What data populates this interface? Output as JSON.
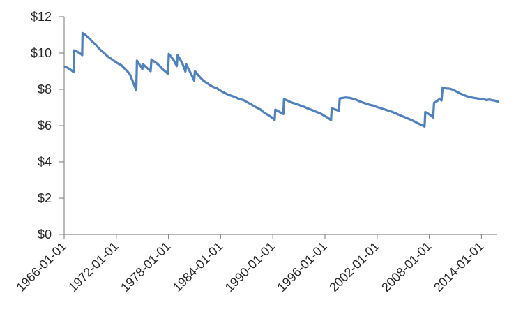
{
  "colors": {
    "line": "#4F81BD",
    "axis": "#8C8C8C",
    "tick_text": "#262626",
    "background": "#FFFFFF"
  },
  "chart_data": {
    "type": "line",
    "title": "",
    "xlabel": "",
    "ylabel": "",
    "grid": false,
    "legend": false,
    "ylim": [
      0,
      12
    ],
    "y_tick_step": 2,
    "y_tick_labels": [
      "$0",
      "$2",
      "$4",
      "$6",
      "$8",
      "$10",
      "$12"
    ],
    "x_tick_labels": [
      "1966-01-01",
      "1972-01-01",
      "1978-01-01",
      "1984-01-01",
      "1990-01-01",
      "1996-01-01",
      "2002-01-01",
      "2008-01-01",
      "2014-01-01"
    ],
    "x_tick_years": [
      1966,
      1972,
      1978,
      1984,
      1990,
      1996,
      2002,
      2008,
      2014
    ],
    "x_range_years": [
      1966,
      2015.9
    ],
    "series": [
      {
        "name": "",
        "points": [
          [
            1966.08,
            9.25
          ],
          [
            1966.4,
            9.18
          ],
          [
            1966.7,
            9.1
          ],
          [
            1967.0,
            8.98
          ],
          [
            1967.08,
            8.95
          ],
          [
            1967.12,
            10.15
          ],
          [
            1967.4,
            10.1
          ],
          [
            1967.7,
            10.02
          ],
          [
            1968.0,
            9.92
          ],
          [
            1968.08,
            9.88
          ],
          [
            1968.12,
            11.1
          ],
          [
            1968.4,
            11.02
          ],
          [
            1968.7,
            10.88
          ],
          [
            1969.0,
            10.75
          ],
          [
            1969.3,
            10.6
          ],
          [
            1969.6,
            10.48
          ],
          [
            1970.0,
            10.25
          ],
          [
            1970.3,
            10.12
          ],
          [
            1970.6,
            10.0
          ],
          [
            1971.0,
            9.82
          ],
          [
            1971.3,
            9.72
          ],
          [
            1971.6,
            9.62
          ],
          [
            1972.0,
            9.48
          ],
          [
            1972.3,
            9.4
          ],
          [
            1972.6,
            9.32
          ],
          [
            1973.0,
            9.12
          ],
          [
            1973.3,
            8.98
          ],
          [
            1973.6,
            8.78
          ],
          [
            1974.0,
            8.3
          ],
          [
            1974.29,
            7.95
          ],
          [
            1974.37,
            9.58
          ],
          [
            1974.6,
            9.42
          ],
          [
            1974.8,
            9.28
          ],
          [
            1975.0,
            9.12
          ],
          [
            1975.04,
            9.4
          ],
          [
            1975.3,
            9.28
          ],
          [
            1975.6,
            9.15
          ],
          [
            1975.95,
            9.0
          ],
          [
            1976.04,
            9.65
          ],
          [
            1976.3,
            9.55
          ],
          [
            1976.6,
            9.45
          ],
          [
            1977.0,
            9.28
          ],
          [
            1977.3,
            9.12
          ],
          [
            1977.6,
            9.0
          ],
          [
            1977.95,
            8.85
          ],
          [
            1978.04,
            9.95
          ],
          [
            1978.3,
            9.8
          ],
          [
            1978.6,
            9.6
          ],
          [
            1978.95,
            9.28
          ],
          [
            1979.04,
            9.88
          ],
          [
            1979.3,
            9.68
          ],
          [
            1979.6,
            9.42
          ],
          [
            1979.95,
            8.98
          ],
          [
            1980.04,
            9.38
          ],
          [
            1980.3,
            9.12
          ],
          [
            1980.6,
            8.85
          ],
          [
            1980.95,
            8.48
          ],
          [
            1981.04,
            9.0
          ],
          [
            1981.3,
            8.85
          ],
          [
            1981.6,
            8.68
          ],
          [
            1982.0,
            8.48
          ],
          [
            1982.4,
            8.35
          ],
          [
            1982.8,
            8.22
          ],
          [
            1983.2,
            8.12
          ],
          [
            1983.6,
            8.05
          ],
          [
            1984.0,
            7.92
          ],
          [
            1984.4,
            7.82
          ],
          [
            1984.8,
            7.72
          ],
          [
            1985.2,
            7.65
          ],
          [
            1985.6,
            7.58
          ],
          [
            1985.9,
            7.52
          ],
          [
            1986.2,
            7.45
          ],
          [
            1986.6,
            7.42
          ],
          [
            1987.0,
            7.3
          ],
          [
            1987.4,
            7.2
          ],
          [
            1987.8,
            7.08
          ],
          [
            1988.2,
            6.98
          ],
          [
            1988.6,
            6.88
          ],
          [
            1989.0,
            6.72
          ],
          [
            1989.4,
            6.6
          ],
          [
            1989.8,
            6.48
          ],
          [
            1990.1,
            6.36
          ],
          [
            1990.21,
            6.3
          ],
          [
            1990.29,
            6.88
          ],
          [
            1990.6,
            6.8
          ],
          [
            1990.9,
            6.72
          ],
          [
            1991.1,
            6.68
          ],
          [
            1991.21,
            6.64
          ],
          [
            1991.29,
            7.45
          ],
          [
            1991.6,
            7.4
          ],
          [
            1992.0,
            7.3
          ],
          [
            1992.4,
            7.24
          ],
          [
            1992.8,
            7.18
          ],
          [
            1993.2,
            7.1
          ],
          [
            1993.6,
            7.04
          ],
          [
            1994.0,
            6.95
          ],
          [
            1994.4,
            6.88
          ],
          [
            1994.8,
            6.8
          ],
          [
            1995.2,
            6.72
          ],
          [
            1995.6,
            6.64
          ],
          [
            1996.0,
            6.52
          ],
          [
            1996.3,
            6.44
          ],
          [
            1996.7,
            6.3
          ],
          [
            1996.78,
            6.95
          ],
          [
            1997.1,
            6.9
          ],
          [
            1997.4,
            6.85
          ],
          [
            1997.6,
            6.8
          ],
          [
            1997.7,
            7.5
          ],
          [
            1998.0,
            7.52
          ],
          [
            1998.4,
            7.55
          ],
          [
            1998.8,
            7.53
          ],
          [
            1999.2,
            7.48
          ],
          [
            1999.6,
            7.42
          ],
          [
            2000.0,
            7.34
          ],
          [
            2000.4,
            7.26
          ],
          [
            2000.8,
            7.2
          ],
          [
            2001.2,
            7.14
          ],
          [
            2001.6,
            7.1
          ],
          [
            2002.0,
            7.02
          ],
          [
            2002.4,
            6.96
          ],
          [
            2002.8,
            6.9
          ],
          [
            2003.2,
            6.84
          ],
          [
            2003.6,
            6.78
          ],
          [
            2004.0,
            6.7
          ],
          [
            2004.4,
            6.62
          ],
          [
            2004.8,
            6.54
          ],
          [
            2005.2,
            6.46
          ],
          [
            2005.6,
            6.38
          ],
          [
            2006.0,
            6.3
          ],
          [
            2006.4,
            6.2
          ],
          [
            2006.8,
            6.1
          ],
          [
            2007.2,
            6.02
          ],
          [
            2007.45,
            5.95
          ],
          [
            2007.54,
            6.75
          ],
          [
            2007.9,
            6.65
          ],
          [
            2008.2,
            6.55
          ],
          [
            2008.45,
            6.45
          ],
          [
            2008.54,
            7.25
          ],
          [
            2008.9,
            7.35
          ],
          [
            2009.2,
            7.48
          ],
          [
            2009.4,
            7.38
          ],
          [
            2009.54,
            8.1
          ],
          [
            2009.9,
            8.05
          ],
          [
            2010.3,
            8.04
          ],
          [
            2010.7,
            7.98
          ],
          [
            2011.1,
            7.88
          ],
          [
            2011.5,
            7.78
          ],
          [
            2011.9,
            7.7
          ],
          [
            2012.3,
            7.62
          ],
          [
            2012.7,
            7.57
          ],
          [
            2013.1,
            7.53
          ],
          [
            2013.5,
            7.5
          ],
          [
            2013.9,
            7.47
          ],
          [
            2014.3,
            7.45
          ],
          [
            2014.6,
            7.4
          ],
          [
            2014.9,
            7.44
          ],
          [
            2015.2,
            7.4
          ],
          [
            2015.5,
            7.38
          ],
          [
            2015.9,
            7.32
          ]
        ]
      }
    ]
  }
}
